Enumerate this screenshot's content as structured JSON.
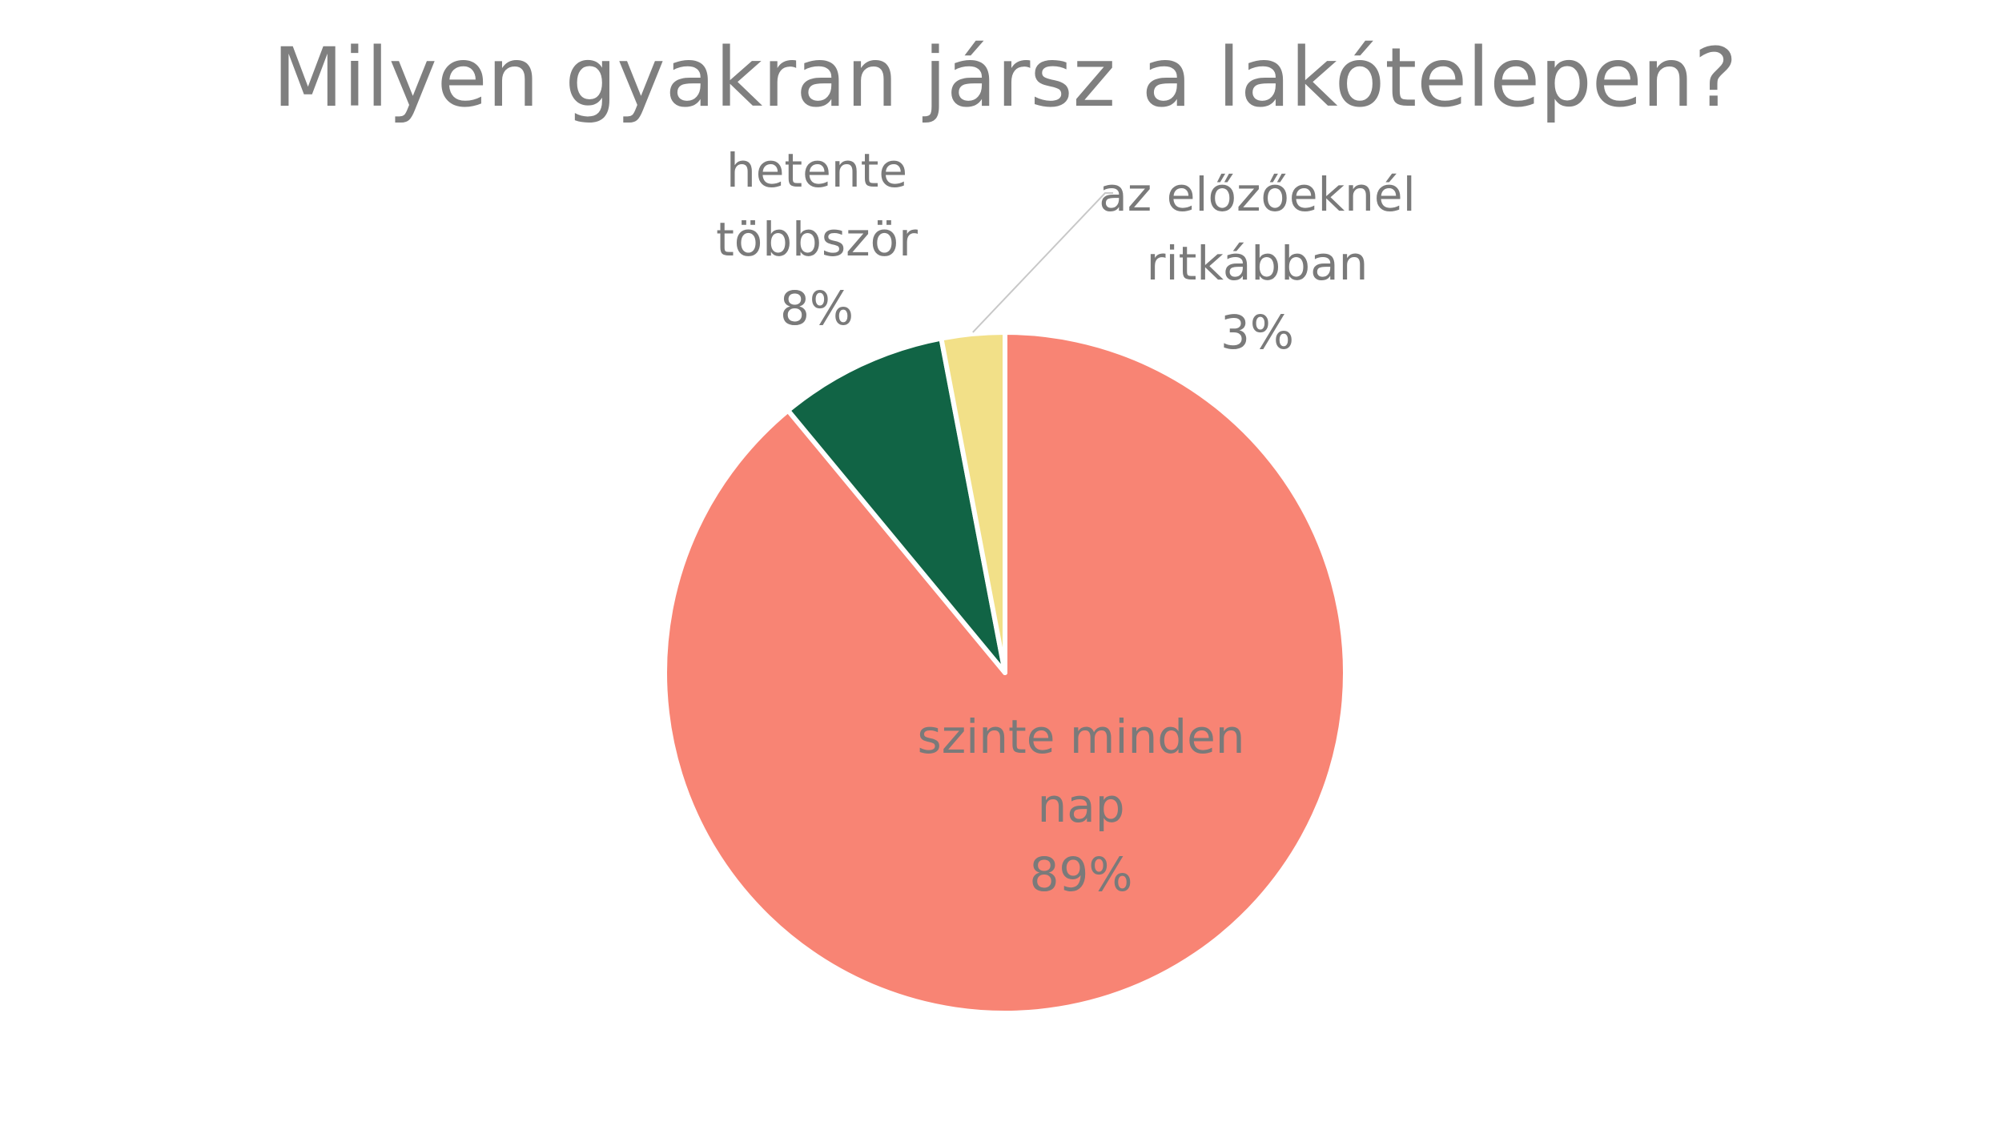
{
  "chart_data": {
    "type": "pie",
    "title": "Milyen gyakran jársz a lakótelepen?",
    "slices": [
      {
        "label_lines": [
          "szinte minden",
          "nap"
        ],
        "value": 89,
        "percent_label": "89%",
        "color": "#f88474"
      },
      {
        "label_lines": [
          "hetente",
          "többször"
        ],
        "value": 8,
        "percent_label": "8%",
        "color": "#116445"
      },
      {
        "label_lines": [
          "az előzőeknél",
          "ritkábban"
        ],
        "value": 3,
        "percent_label": "3%",
        "color": "#f2e088"
      }
    ],
    "start_angle_deg": 0,
    "direction": "clockwise",
    "legend": "none"
  }
}
